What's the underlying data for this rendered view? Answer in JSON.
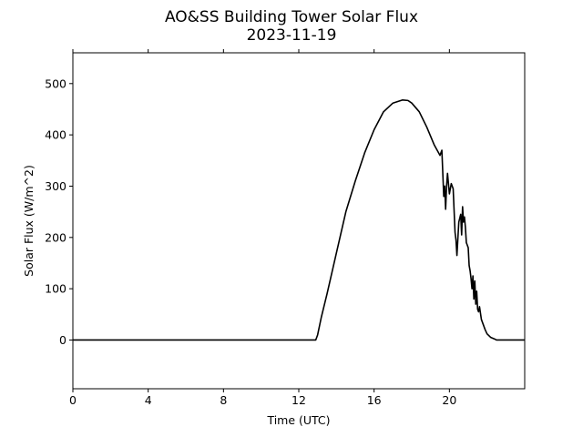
{
  "chart_data": {
    "type": "line",
    "title": "AO&SS Building Tower Solar Flux",
    "subtitle": "2023-11-19",
    "xlabel": "Time (UTC)",
    "ylabel": "Solar Flux (W/m^2)",
    "xlim": [
      0,
      24
    ],
    "ylim": [
      -95,
      560
    ],
    "xticks": [
      0,
      4,
      8,
      12,
      16,
      20
    ],
    "xtick_labels": [
      "0",
      "4",
      "8",
      "12",
      "16",
      "20"
    ],
    "yticks": [
      0,
      100,
      200,
      300,
      400,
      500
    ],
    "ytick_labels": [
      "0",
      "100",
      "200",
      "300",
      "400",
      "500"
    ],
    "grid": false,
    "line_color": "#000000",
    "series": [
      {
        "x": [
          0,
          12.9,
          13.0,
          13.2,
          13.5,
          14.0,
          14.5,
          15.0,
          15.5,
          16.0,
          16.5,
          17.0,
          17.5,
          17.8,
          18.0,
          18.4,
          18.8,
          19.2,
          19.5,
          19.6,
          19.7,
          19.75,
          19.8,
          19.85,
          19.9,
          20.0,
          20.1,
          20.15,
          20.2,
          20.3,
          20.35,
          20.4,
          20.5,
          20.6,
          20.65,
          20.7,
          20.75,
          20.8,
          20.85,
          20.9,
          20.95,
          21.0,
          21.05,
          21.1,
          21.15,
          21.2,
          21.25,
          21.3,
          21.35,
          21.4,
          21.45,
          21.5,
          21.55,
          21.6,
          21.7,
          21.8,
          21.9,
          22.0,
          22.2,
          22.4,
          22.5,
          24.0
        ],
        "y": [
          0,
          0,
          10,
          45,
          90,
          170,
          250,
          310,
          365,
          410,
          445,
          462,
          468,
          467,
          462,
          445,
          415,
          380,
          360,
          370,
          280,
          300,
          255,
          300,
          325,
          285,
          305,
          300,
          295,
          210,
          195,
          165,
          230,
          245,
          205,
          260,
          230,
          240,
          220,
          190,
          185,
          180,
          145,
          135,
          120,
          100,
          125,
          80,
          115,
          70,
          95,
          60,
          55,
          65,
          40,
          30,
          20,
          12,
          5,
          2,
          0,
          0
        ]
      }
    ]
  }
}
